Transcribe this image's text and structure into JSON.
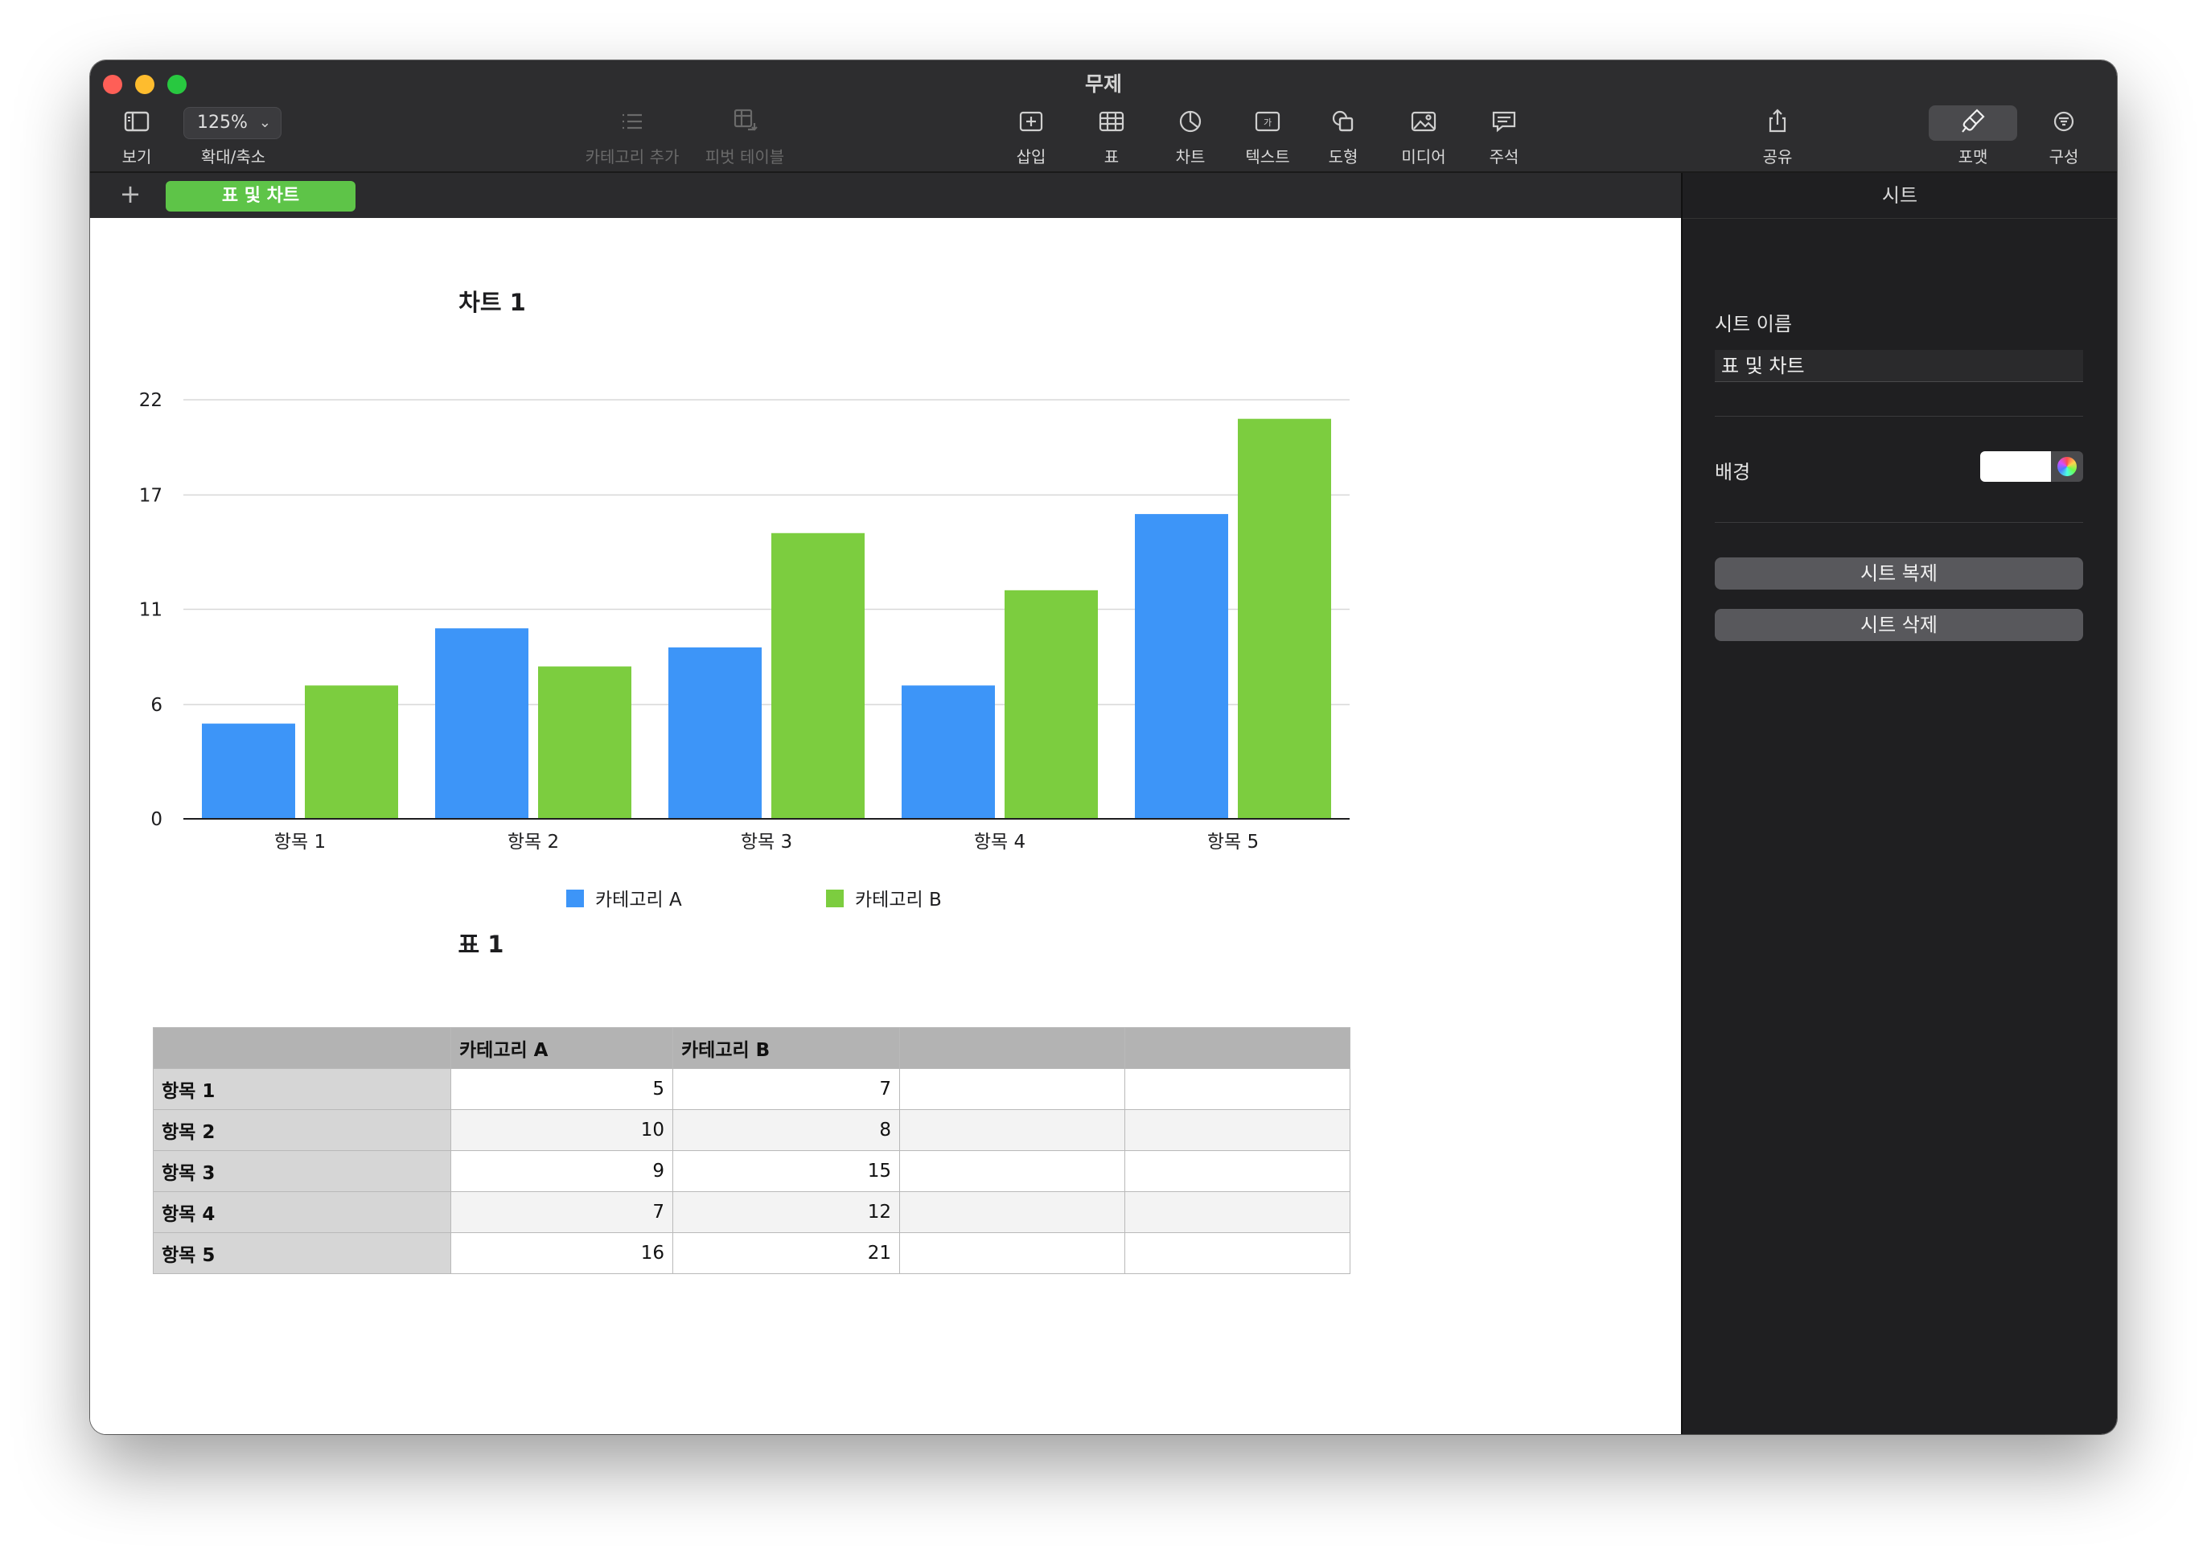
{
  "window": {
    "title": "무제",
    "traffic_lights": {
      "close": "#fe5f57",
      "minimize": "#febc2e",
      "zoom": "#28c840"
    }
  },
  "toolbar": {
    "view_label": "보기",
    "zoom_value": "125%",
    "zoom_label": "확대/축소",
    "add_category_label": "카테고리 추가",
    "pivot_table_label": "피벗 테이블",
    "insert_label": "삽입",
    "table_label": "표",
    "chart_label": "차트",
    "text_label": "텍스트",
    "shape_label": "도형",
    "media_label": "미디어",
    "comment_label": "주석",
    "share_label": "공유",
    "format_label": "포맷",
    "organize_label": "구성"
  },
  "tabs": {
    "add_icon": "plus-icon",
    "active_sheet": "표 및 차트"
  },
  "sidebar": {
    "header": "시트",
    "sheet_name_label": "시트 이름",
    "sheet_name_value": "표 및 차트",
    "background_label": "배경",
    "background_color": "#ffffff",
    "duplicate_button": "시트 복제",
    "delete_button": "시트 삭제"
  },
  "colors": {
    "category_a": "#3d95f8",
    "category_b": "#7ccd3f",
    "sheet_tab": "#5ec448"
  },
  "chart_data": {
    "type": "bar",
    "title": "차트 1",
    "categories": [
      "항목 1",
      "항목 2",
      "항목 3",
      "항목 4",
      "항목 5"
    ],
    "series": [
      {
        "name": "카테고리 A",
        "color": "#3d95f8",
        "values": [
          5,
          10,
          9,
          7,
          16
        ]
      },
      {
        "name": "카테고리 B",
        "color": "#7ccd3f",
        "values": [
          7,
          8,
          15,
          12,
          21
        ]
      }
    ],
    "y_ticks": [
      0,
      6,
      11,
      17,
      22
    ],
    "ylim": [
      0,
      22
    ],
    "grid": true,
    "legend": "bottom"
  },
  "table": {
    "title": "표 1",
    "header": [
      "",
      "카테고리 A",
      "카테고리 B",
      "",
      ""
    ],
    "rows": [
      {
        "label": "항목 1",
        "a": "5",
        "b": "7"
      },
      {
        "label": "항목 2",
        "a": "10",
        "b": "8"
      },
      {
        "label": "항목 3",
        "a": "9",
        "b": "15"
      },
      {
        "label": "항목 4",
        "a": "7",
        "b": "12"
      },
      {
        "label": "항목 5",
        "a": "16",
        "b": "21"
      }
    ]
  }
}
